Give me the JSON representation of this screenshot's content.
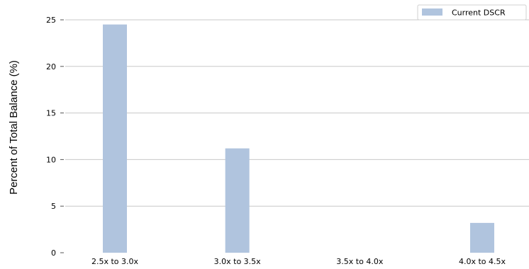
{
  "chart_data": {
    "type": "bar",
    "title": "",
    "xlabel": "",
    "ylabel": "Percent of Total Balance (%)",
    "categories": [
      "2.5x to 3.0x",
      "3.0x to 3.5x",
      "3.5x to 4.0x",
      "4.0x to 4.5x"
    ],
    "series": [
      {
        "name": "Current DSCR",
        "values": [
          24.5,
          11.2,
          0,
          3.2
        ],
        "color": "#b0c4de"
      }
    ],
    "ylim": [
      0,
      25
    ],
    "yticks": [
      0,
      5,
      10,
      15,
      20,
      25
    ],
    "grid": "horizontal",
    "legend_position": "top-right"
  }
}
